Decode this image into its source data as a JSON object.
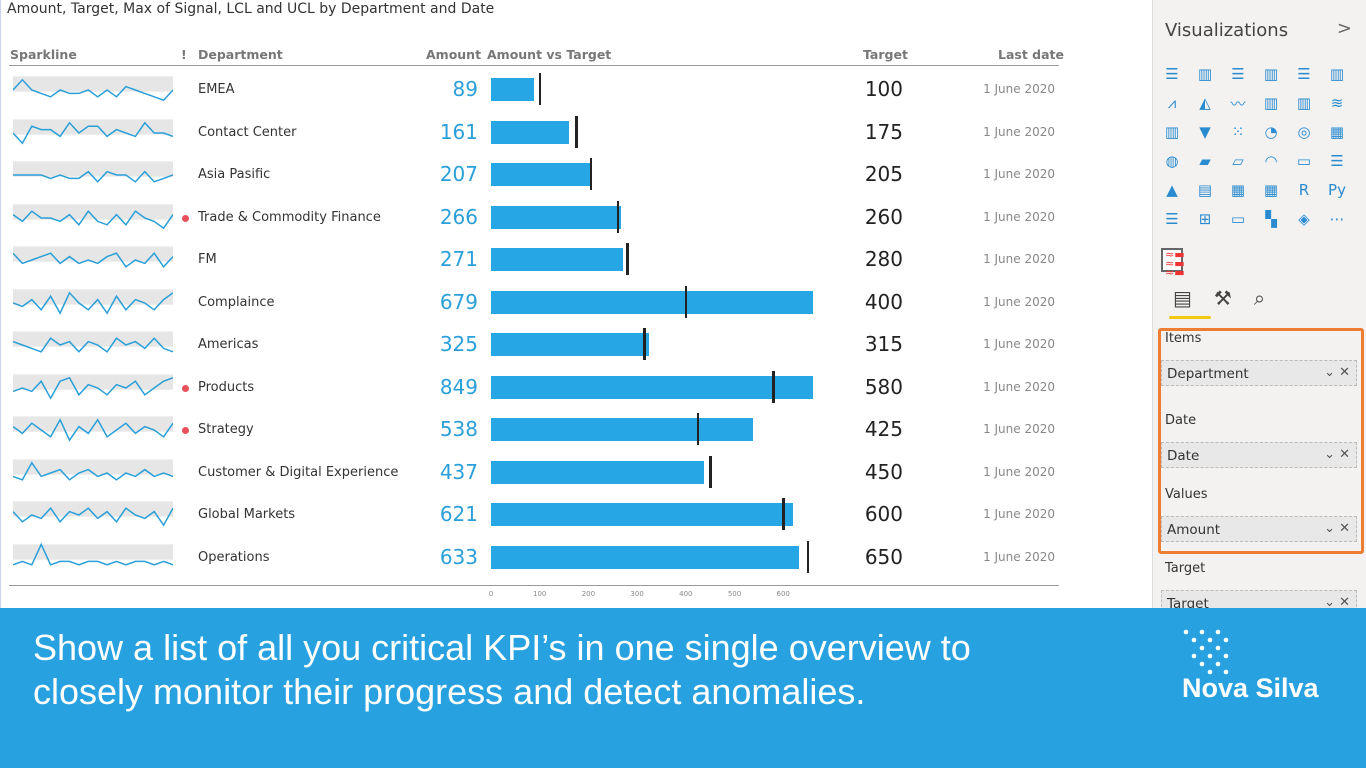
{
  "title": "Amount, Target, Max of Signal, LCL and UCL by Department and Date",
  "headers": {
    "sparkline": "Sparkline",
    "alert": "!",
    "department": "Department",
    "amount": "Amount",
    "amount_vs_target": "Amount vs Target",
    "target": "Target",
    "last_date": "Last date"
  },
  "axis_ticks": [
    "0",
    "100",
    "200",
    "300",
    "400",
    "500",
    "600"
  ],
  "rows": [
    {
      "department": "EMEA",
      "amount": "89",
      "target": "100",
      "date": "1 June 2020",
      "alert": false,
      "a": 89,
      "t": 100,
      "spark": [
        5,
        8,
        5,
        4,
        3,
        5,
        4,
        4,
        5,
        3,
        5,
        3,
        6,
        5,
        4,
        3,
        2,
        5
      ]
    },
    {
      "department": "Contact Center",
      "amount": "161",
      "target": "175",
      "date": "1 June 2020",
      "alert": false,
      "a": 161,
      "t": 175,
      "spark": [
        5,
        2,
        7,
        6,
        6,
        4,
        8,
        5,
        7,
        7,
        4,
        6,
        5,
        4,
        8,
        5,
        5,
        4
      ]
    },
    {
      "department": "Asia Pasific",
      "amount": "207",
      "target": "205",
      "date": "1 June 2020",
      "alert": false,
      "a": 207,
      "t": 205,
      "spark": [
        5,
        5,
        5,
        5,
        4,
        5,
        4,
        4,
        6,
        3,
        6,
        5,
        5,
        3,
        6,
        3,
        4,
        5
      ]
    },
    {
      "department": "Trade & Commodity Finance",
      "amount": "266",
      "target": "260",
      "date": "1 June 2020",
      "alert": true,
      "a": 266,
      "t": 260,
      "spark": [
        6,
        4,
        7,
        5,
        5,
        4,
        6,
        3,
        7,
        4,
        3,
        6,
        3,
        7,
        5,
        4,
        2,
        6
      ]
    },
    {
      "department": "FM",
      "amount": "271",
      "target": "280",
      "date": "1 June 2020",
      "alert": false,
      "a": 271,
      "t": 280,
      "spark": [
        7,
        4,
        5,
        6,
        7,
        4,
        6,
        4,
        5,
        4,
        6,
        7,
        3,
        5,
        4,
        7,
        3,
        6
      ]
    },
    {
      "department": "Complaince",
      "amount": "679",
      "target": "400",
      "date": "1 June 2020",
      "alert": false,
      "a": 679,
      "t": 400,
      "spark": [
        5,
        4,
        6,
        3,
        7,
        2,
        8,
        5,
        3,
        6,
        2,
        7,
        3,
        6,
        5,
        3,
        6,
        8
      ]
    },
    {
      "department": "Americas",
      "amount": "325",
      "target": "315",
      "date": "1 June 2020",
      "alert": false,
      "a": 325,
      "t": 315,
      "spark": [
        6,
        5,
        4,
        3,
        7,
        5,
        6,
        3,
        6,
        5,
        3,
        7,
        5,
        6,
        4,
        7,
        4,
        3
      ]
    },
    {
      "department": "Products",
      "amount": "849",
      "target": "580",
      "date": "1 June 2020",
      "alert": true,
      "a": 849,
      "t": 580,
      "spark": [
        4,
        5,
        4,
        7,
        2,
        7,
        8,
        3,
        6,
        5,
        3,
        6,
        5,
        7,
        3,
        5,
        7,
        8
      ]
    },
    {
      "department": "Strategy",
      "amount": "538",
      "target": "425",
      "date": "1 June 2020",
      "alert": true,
      "a": 538,
      "t": 425,
      "spark": [
        6,
        4,
        7,
        5,
        3,
        8,
        2,
        6,
        4,
        8,
        3,
        5,
        7,
        4,
        6,
        5,
        3,
        7
      ]
    },
    {
      "department": "Customer & Digital Experience",
      "amount": "437",
      "target": "450",
      "date": "1 June 2020",
      "alert": false,
      "a": 437,
      "t": 450,
      "spark": [
        4,
        3,
        8,
        4,
        5,
        6,
        3,
        5,
        6,
        4,
        5,
        3,
        5,
        4,
        6,
        4,
        5,
        4
      ]
    },
    {
      "department": "Global Markets",
      "amount": "621",
      "target": "600",
      "date": "1 June 2020",
      "alert": false,
      "a": 621,
      "t": 600,
      "spark": [
        6,
        3,
        5,
        4,
        7,
        3,
        6,
        5,
        7,
        4,
        6,
        3,
        7,
        5,
        4,
        6,
        2,
        7
      ]
    },
    {
      "department": "Operations",
      "amount": "633",
      "target": "650",
      "date": "1 June 2020",
      "alert": false,
      "a": 633,
      "t": 650,
      "spark": [
        3,
        4,
        3,
        9,
        3,
        4,
        4,
        3,
        4,
        4,
        3,
        4,
        3,
        4,
        4,
        3,
        4,
        3
      ]
    }
  ],
  "panel": {
    "title": "Visualizations",
    "wells": [
      {
        "label": "Items",
        "value": "Department"
      },
      {
        "label": "Date",
        "value": "Date"
      },
      {
        "label": "Values",
        "value": "Amount"
      },
      {
        "label": "Target",
        "value": "Target"
      }
    ]
  },
  "banner": {
    "line1": "Show a list of all you critical KPI’s in one single overview to",
    "line2": "closely monitor their progress and detect anomalies.",
    "logo": "Nova Silva"
  },
  "colors": {
    "bar": "#27a6e5",
    "banner": "#27a1e0",
    "alert": "#e8505b",
    "highlight": "#ed7d31"
  }
}
